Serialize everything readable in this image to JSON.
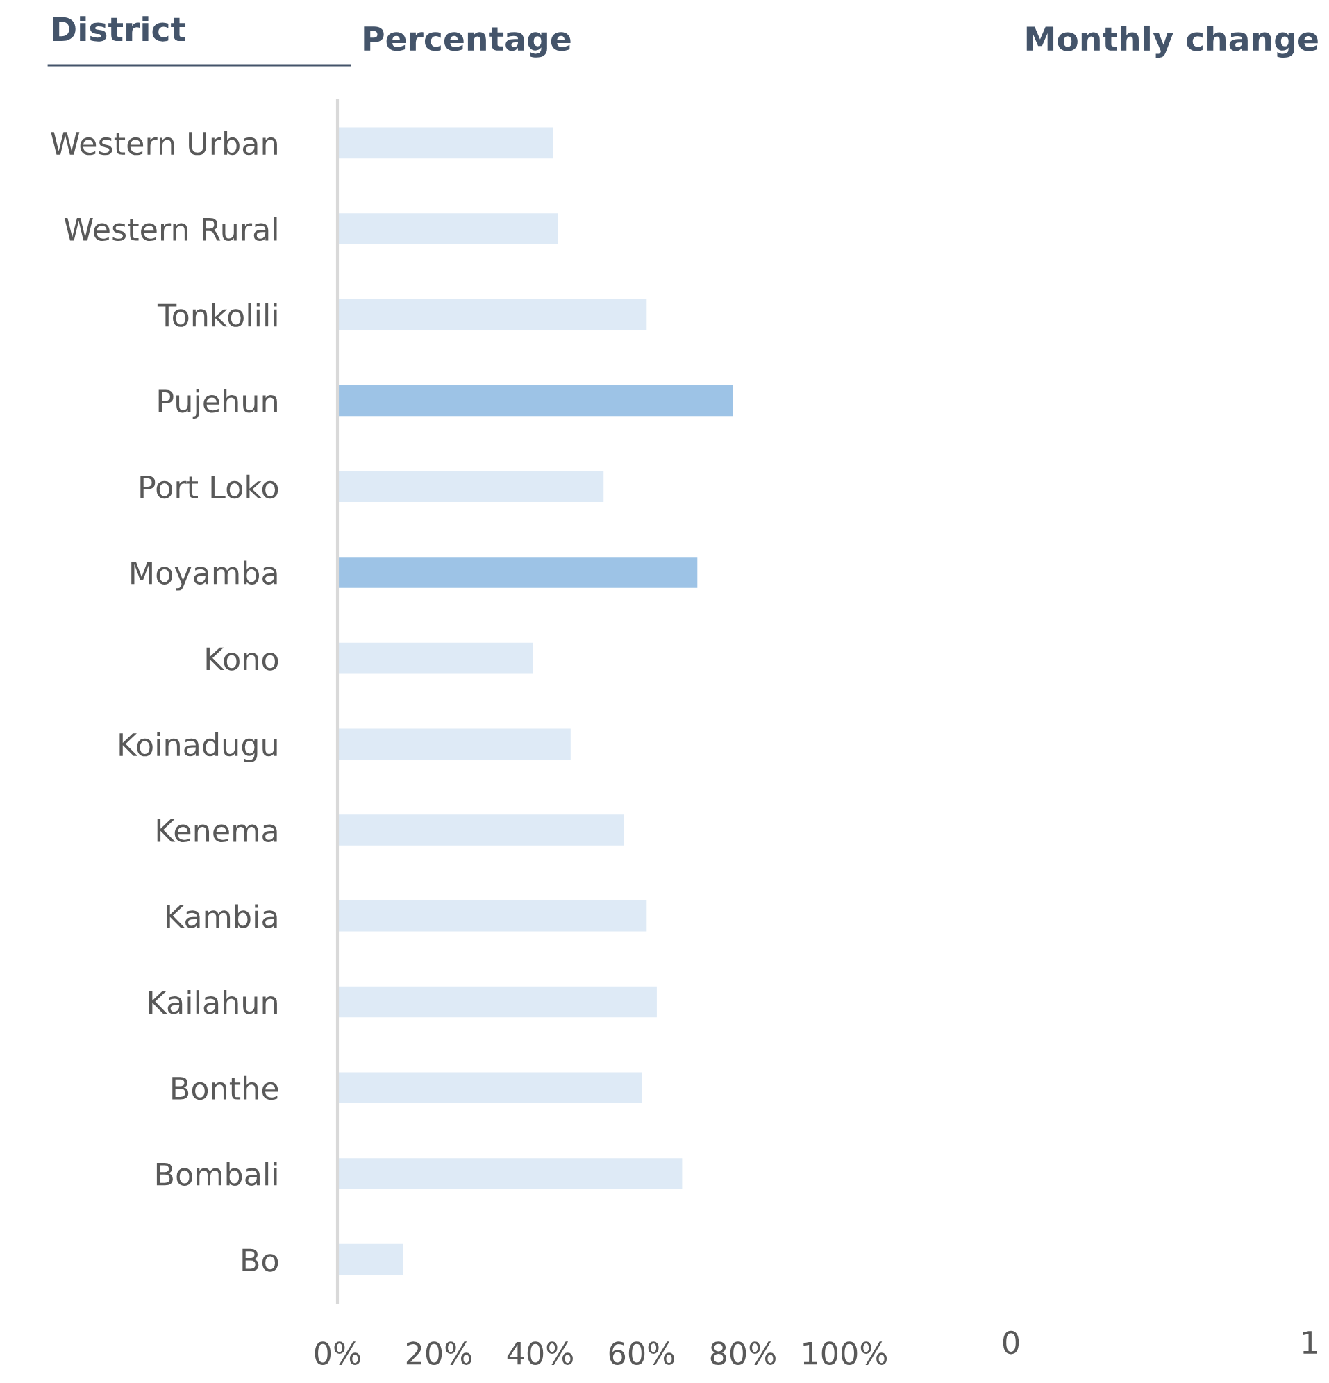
{
  "chart_data": [
    {
      "type": "bar",
      "orientation": "horizontal",
      "title": "Percentage",
      "ylabel": "District",
      "categories": [
        "Western Urban",
        "Western Rural",
        "Tonkolili",
        "Pujehun",
        "Port Loko",
        "Moyamba",
        "Kono",
        "Koinadugu",
        "Kenema",
        "Kambia",
        "Kailahun",
        "Bonthe",
        "Bombali",
        "Bo"
      ],
      "values": [
        42.5,
        43.5,
        61,
        78,
        52.5,
        71,
        38.5,
        46,
        56.5,
        61,
        63,
        60,
        68,
        13
      ],
      "colors": [
        "#deeaf6",
        "#deeaf6",
        "#deeaf6",
        "#9dc3e6",
        "#deeaf6",
        "#9dc3e6",
        "#deeaf6",
        "#deeaf6",
        "#deeaf6",
        "#deeaf6",
        "#deeaf6",
        "#deeaf6",
        "#deeaf6",
        "#deeaf6"
      ],
      "xlim": [
        0,
        100
      ],
      "xticks": [
        {
          "value": 0,
          "label": "0%"
        },
        {
          "value": 20,
          "label": "20%"
        },
        {
          "value": 40,
          "label": "40%"
        },
        {
          "value": 60,
          "label": "60%"
        },
        {
          "value": 80,
          "label": "80%"
        },
        {
          "value": 100,
          "label": "100%"
        }
      ],
      "grid": false,
      "legend": false
    },
    {
      "type": "other",
      "title": "Monthly change",
      "annotations": [
        "0",
        "1"
      ]
    }
  ]
}
